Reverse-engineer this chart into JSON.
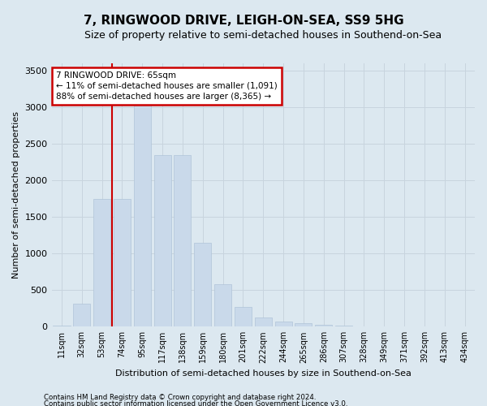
{
  "title": "7, RINGWOOD DRIVE, LEIGH-ON-SEA, SS9 5HG",
  "subtitle": "Size of property relative to semi-detached houses in Southend-on-Sea",
  "xlabel": "Distribution of semi-detached houses by size in Southend-on-Sea",
  "ylabel": "Number of semi-detached properties",
  "footnote1": "Contains HM Land Registry data © Crown copyright and database right 2024.",
  "footnote2": "Contains public sector information licensed under the Open Government Licence v3.0.",
  "annotation_title": "7 RINGWOOD DRIVE: 65sqm",
  "annotation_line1": "← 11% of semi-detached houses are smaller (1,091)",
  "annotation_line2": "88% of semi-detached houses are larger (8,365) →",
  "bar_color": "#c9d9ea",
  "bar_edge_color": "#b0c4d8",
  "grid_color": "#c8d4de",
  "background_color": "#dce8f0",
  "fig_background": "#dce8f0",
  "annotation_box_color": "#ffffff",
  "annotation_border_color": "#cc0000",
  "vline_color": "#cc0000",
  "categories": [
    "11sqm",
    "32sqm",
    "53sqm",
    "74sqm",
    "95sqm",
    "117sqm",
    "138sqm",
    "159sqm",
    "180sqm",
    "201sqm",
    "222sqm",
    "244sqm",
    "265sqm",
    "286sqm",
    "307sqm",
    "328sqm",
    "349sqm",
    "371sqm",
    "392sqm",
    "413sqm",
    "434sqm"
  ],
  "values": [
    20,
    310,
    1750,
    1750,
    3050,
    2350,
    2350,
    1150,
    580,
    270,
    120,
    70,
    50,
    25,
    10,
    5,
    3,
    2,
    1,
    0,
    0
  ],
  "ylim": [
    0,
    3600
  ],
  "yticks": [
    0,
    500,
    1000,
    1500,
    2000,
    2500,
    3000,
    3500
  ],
  "vline_x_index": 2.5,
  "title_fontsize": 11,
  "subtitle_fontsize": 9
}
